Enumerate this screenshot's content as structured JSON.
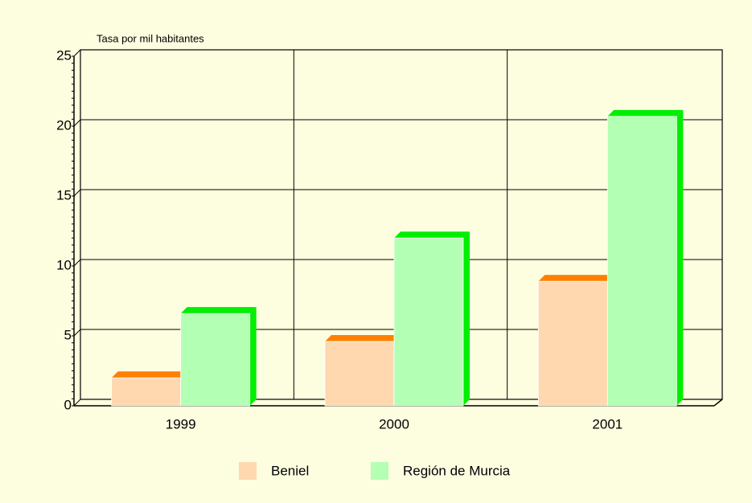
{
  "chart_data": {
    "type": "bar3d",
    "y_axis_label": "Tasa por mil habitantes",
    "categories": [
      "1999",
      "2000",
      "2001"
    ],
    "series": [
      {
        "name": "Beniel",
        "color": "#FFD8B0",
        "top_color": "#FF8000",
        "values": [
          2.0,
          4.6,
          8.9
        ]
      },
      {
        "name": "Región de Murcia",
        "color": "#B3FFB3",
        "top_color": "#00EE00",
        "values": [
          6.6,
          12.0,
          20.7
        ]
      }
    ],
    "ylim": [
      0,
      25
    ],
    "yticks": [
      0,
      5,
      10,
      15,
      20,
      25
    ],
    "grid": true,
    "legend": "bottom"
  }
}
